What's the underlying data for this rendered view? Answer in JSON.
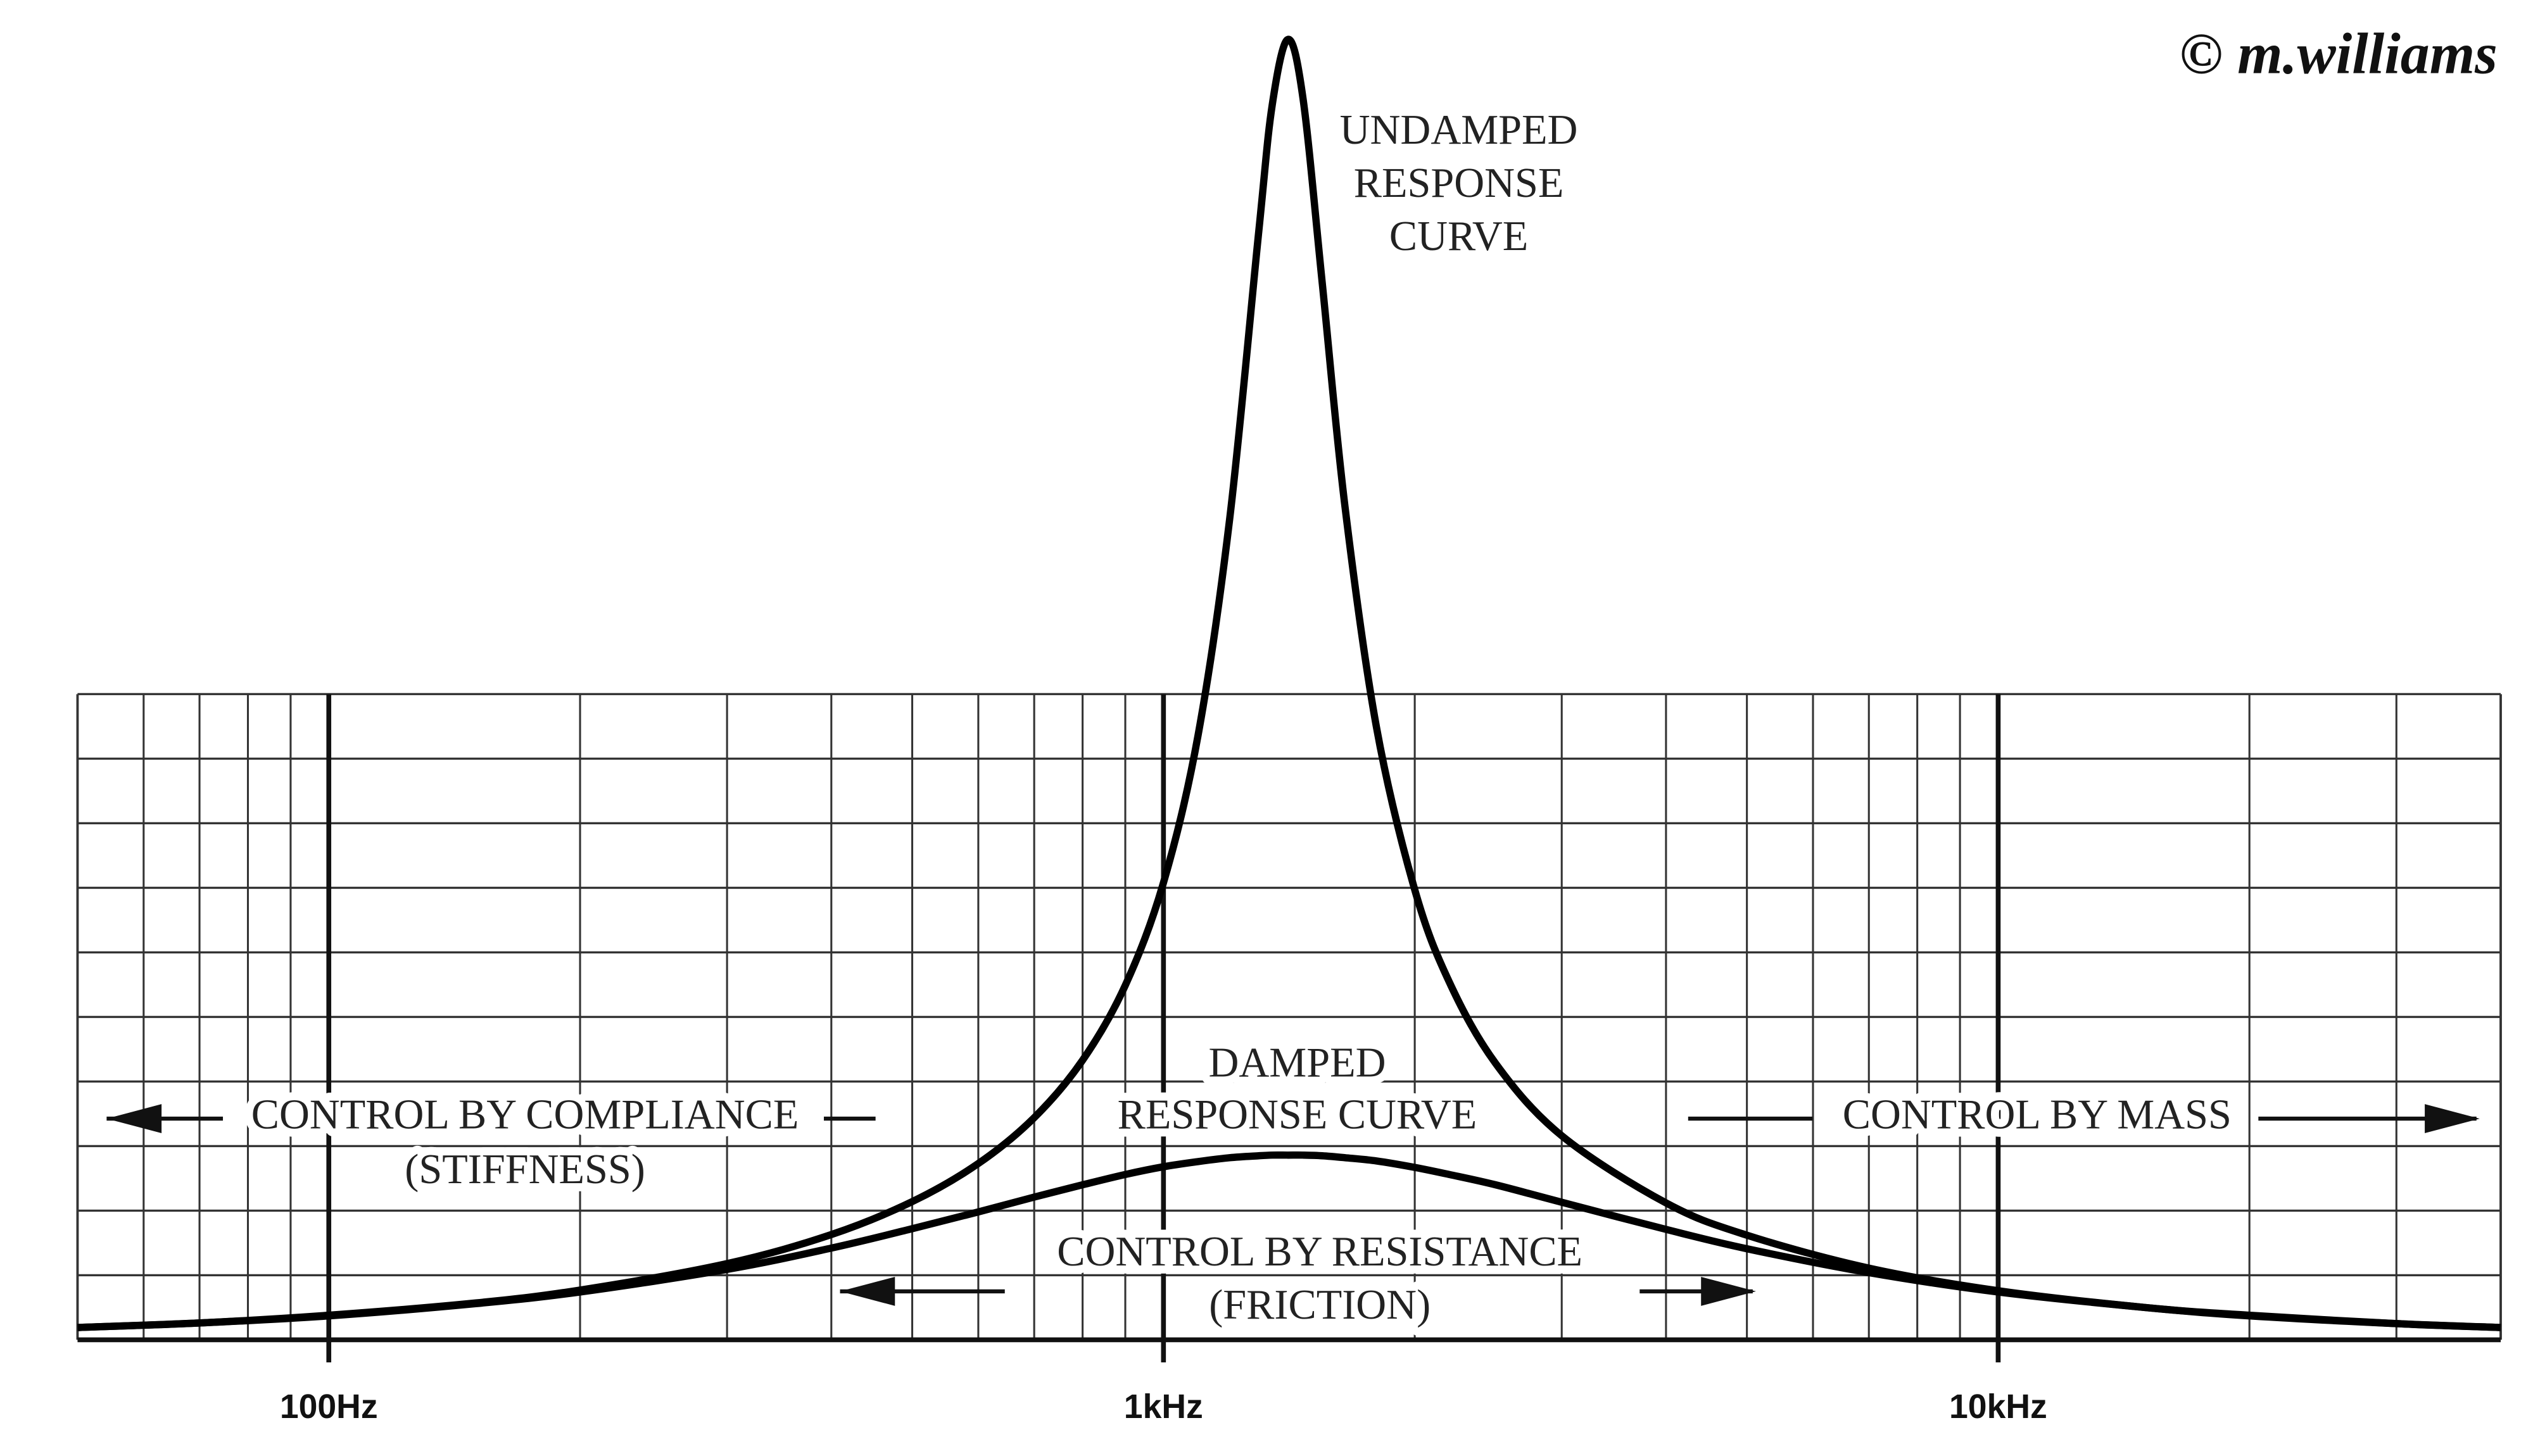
{
  "chart_data": {
    "type": "line",
    "x": [
      50,
      70,
      100,
      150,
      200,
      300,
      400,
      500,
      600,
      700,
      800,
      900,
      1000,
      1100,
      1200,
      1300,
      1350,
      1410,
      1470,
      1550,
      1650,
      1800,
      2000,
      2200,
      2500,
      3000,
      4000,
      5000,
      7000,
      10000,
      15000,
      20000,
      30000,
      40000
    ],
    "series": [
      {
        "color": "#000000",
        "values": [
          0.19,
          0.26,
          0.38,
          0.57,
          0.77,
          1.18,
          1.63,
          2.14,
          2.73,
          3.44,
          4.33,
          5.49,
          7.08,
          9.36,
          12.7,
          17.14,
          19.13,
          20.14,
          19.21,
          16.35,
          12.9,
          9.48,
          6.97,
          5.54,
          4.28,
          3.16,
          2.12,
          1.62,
          1.11,
          0.76,
          0.5,
          0.38,
          0.25,
          0.19
        ]
      },
      {
        "color": "#000000",
        "values": [
          0.19,
          0.26,
          0.37,
          0.56,
          0.74,
          1.09,
          1.42,
          1.72,
          1.98,
          2.21,
          2.4,
          2.56,
          2.68,
          2.76,
          2.82,
          2.85,
          2.86,
          2.86,
          2.86,
          2.85,
          2.82,
          2.77,
          2.67,
          2.56,
          2.4,
          2.13,
          1.71,
          1.41,
          1.04,
          0.74,
          0.5,
          0.37,
          0.25,
          0.19
        ]
      }
    ],
    "xscale": "log",
    "xlim": [
      50,
      40000
    ],
    "xticks": [
      {
        "value": 100,
        "label": "100Hz"
      },
      {
        "value": 1000,
        "label": "1kHz"
      },
      {
        "value": 10000,
        "label": "10kHz"
      }
    ],
    "xminor": [
      60,
      70,
      80,
      90,
      200,
      300,
      400,
      500,
      600,
      700,
      800,
      900,
      2000,
      3000,
      4000,
      5000,
      6000,
      7000,
      8000,
      9000,
      20000,
      30000
    ],
    "ylim": [
      0,
      20.5
    ],
    "yticks": [
      1,
      2,
      3,
      4,
      5,
      6,
      7,
      8,
      9,
      10
    ],
    "grid": true,
    "annotations": [
      {
        "lines": [
          "UNDAMPED",
          "RESPONSE",
          "CURVE"
        ]
      },
      {
        "lines": [
          "DAMPED",
          "RESPONSE CURVE"
        ]
      },
      {
        "lines": [
          "CONTROL BY COMPLIANCE",
          "(STIFFNESS)"
        ]
      },
      {
        "lines": [
          "CONTROL BY RESISTANCE",
          "(FRICTION)"
        ]
      },
      {
        "lines": [
          "CONTROL BY MASS"
        ]
      }
    ],
    "copyright": "© m.williams"
  }
}
